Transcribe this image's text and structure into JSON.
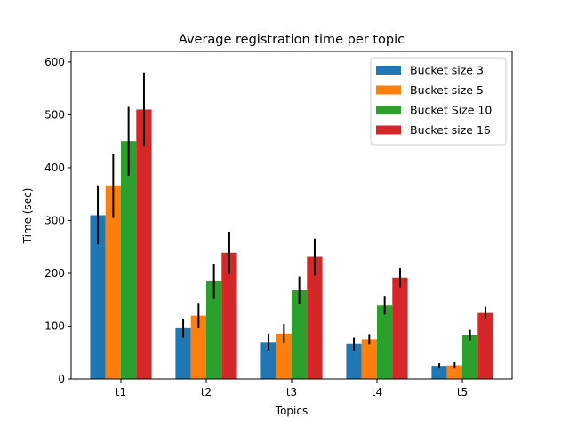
{
  "chart_data": {
    "type": "bar",
    "title": "Average registration time per topic",
    "xlabel": "Topics",
    "ylabel": "Time (sec)",
    "categories": [
      "t1",
      "t2",
      "t3",
      "t4",
      "t5"
    ],
    "ylim": [
      0,
      620
    ],
    "yticks": [
      0,
      100,
      200,
      300,
      400,
      500,
      600
    ],
    "grid": false,
    "legend_position": "top-right",
    "series": [
      {
        "name": "Bucket size 3",
        "color": "#1f77b4",
        "values": [
          310,
          96,
          70,
          66,
          25
        ],
        "errors": [
          55,
          18,
          16,
          12,
          5
        ]
      },
      {
        "name": "Bucket size 5",
        "color": "#ff7f0e",
        "values": [
          365,
          120,
          86,
          75,
          26
        ],
        "errors": [
          60,
          24,
          18,
          10,
          6
        ]
      },
      {
        "name": "Bucket Size 10",
        "color": "#2ca02c",
        "values": [
          450,
          185,
          168,
          139,
          83
        ],
        "errors": [
          65,
          33,
          26,
          17,
          10
        ]
      },
      {
        "name": "Bucket size 16",
        "color": "#d62728",
        "values": [
          510,
          239,
          231,
          192,
          125
        ],
        "errors": [
          70,
          40,
          35,
          18,
          12
        ]
      }
    ]
  }
}
